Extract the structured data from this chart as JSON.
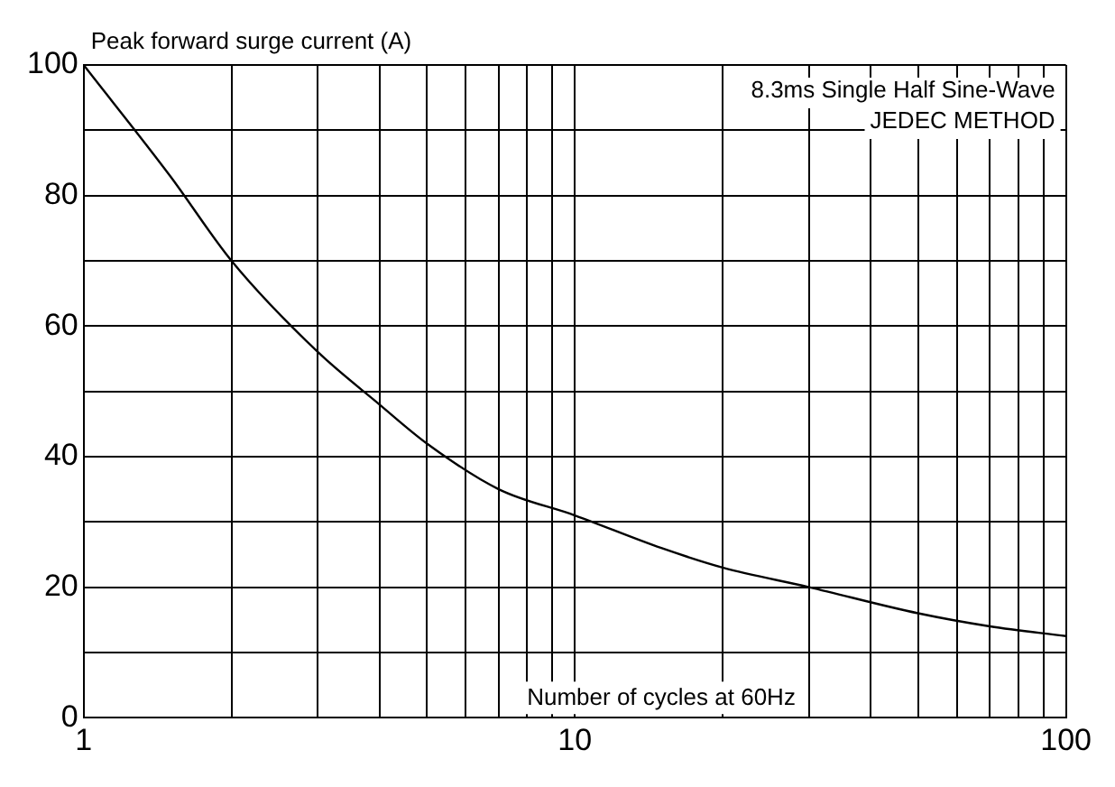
{
  "chart_data": {
    "type": "line",
    "ylabel": "Peak forward surge current (A)",
    "xlabel": "Number of cycles at 60Hz",
    "annotations": [
      "8.3ms Single Half Sine-Wave",
      "JEDEC METHOD"
    ],
    "x": [
      1,
      1.5,
      2,
      3,
      4,
      5,
      7,
      10,
      15,
      20,
      30,
      50,
      70,
      100
    ],
    "series": [
      {
        "color": "#000000",
        "values": [
          100,
          83,
          70,
          56,
          48,
          42,
          35,
          31,
          26,
          23,
          20,
          16,
          14,
          12.5
        ]
      }
    ],
    "log": "x",
    "xlim": [
      1,
      100
    ],
    "xticks": [
      1,
      {
        "value": 2,
        "label": null
      },
      {
        "value": 3,
        "label": null
      },
      {
        "value": 4,
        "label": null
      },
      {
        "value": 5,
        "label": null
      },
      {
        "value": 6,
        "label": null
      },
      {
        "value": 7,
        "label": null
      },
      {
        "value": 8,
        "label": null
      },
      {
        "value": 9,
        "label": null
      },
      10,
      {
        "value": 20,
        "label": null
      },
      {
        "value": 30,
        "label": null
      },
      {
        "value": 40,
        "label": null
      },
      {
        "value": 50,
        "label": null
      },
      {
        "value": 60,
        "label": null
      },
      {
        "value": 70,
        "label": null
      },
      {
        "value": 80,
        "label": null
      },
      {
        "value": 90,
        "label": null
      },
      100
    ],
    "ylim": [
      0,
      100
    ],
    "yticks": [
      0,
      {
        "value": 10,
        "label": null
      },
      20,
      {
        "value": 30,
        "label": null
      },
      40,
      {
        "value": 50,
        "label": null
      },
      60,
      {
        "value": 70,
        "label": null
      },
      80,
      {
        "value": 90,
        "label": null
      },
      100
    ],
    "grid": true,
    "legend": false,
    "marker": "none",
    "line_style": "solid"
  }
}
